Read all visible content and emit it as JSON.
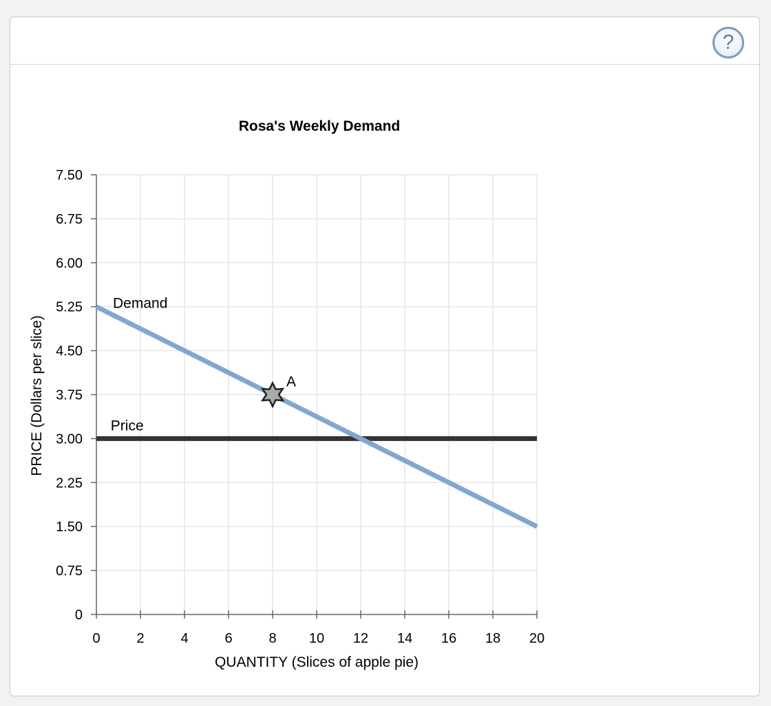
{
  "help": {
    "label": "?"
  },
  "chart_data": {
    "type": "line",
    "title": "Rosa's Weekly Demand",
    "xlabel": "QUANTITY (Slices of apple pie)",
    "ylabel": "PRICE (Dollars per slice)",
    "xlim": [
      0,
      20
    ],
    "ylim": [
      0,
      7.5
    ],
    "x_ticks": [
      0,
      2,
      4,
      6,
      8,
      10,
      12,
      14,
      16,
      18,
      20
    ],
    "y_ticks": [
      0,
      0.75,
      1.5,
      2.25,
      3.0,
      3.75,
      4.5,
      5.25,
      6.0,
      6.75,
      7.5
    ],
    "y_tick_labels": [
      "0",
      "0.75",
      "1.50",
      "2.25",
      "3.00",
      "3.75",
      "4.50",
      "5.25",
      "6.00",
      "6.75",
      "7.50"
    ],
    "grid": true,
    "series": [
      {
        "name": "Demand",
        "color": "#7fa8d0",
        "x": [
          0,
          20
        ],
        "y": [
          5.25,
          1.5
        ]
      },
      {
        "name": "Price",
        "color": "#333333",
        "x": [
          0,
          20
        ],
        "y": [
          3.0,
          3.0
        ]
      }
    ],
    "points": [
      {
        "label": "A",
        "x": 8,
        "y": 3.75,
        "marker": "star",
        "color": "#aaaaaa"
      }
    ]
  }
}
